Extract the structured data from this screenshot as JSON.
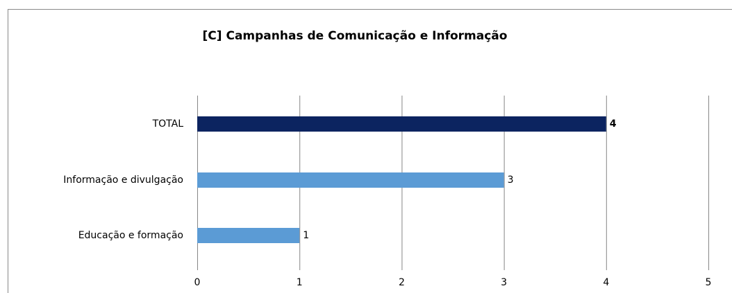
{
  "chart_data": {
    "type": "barh",
    "title": "[C] Campanhas de Comunicação e Informação",
    "categories": [
      "TOTAL",
      "Informação e divulgação",
      "Educação e formação"
    ],
    "values": [
      4,
      3,
      1
    ],
    "colors": [
      "#0c2460",
      "#5b9bd5",
      "#5b9bd5"
    ],
    "xlim": [
      0,
      5
    ],
    "xticks": [
      0,
      1,
      2,
      3,
      4,
      5
    ],
    "grid": true
  }
}
